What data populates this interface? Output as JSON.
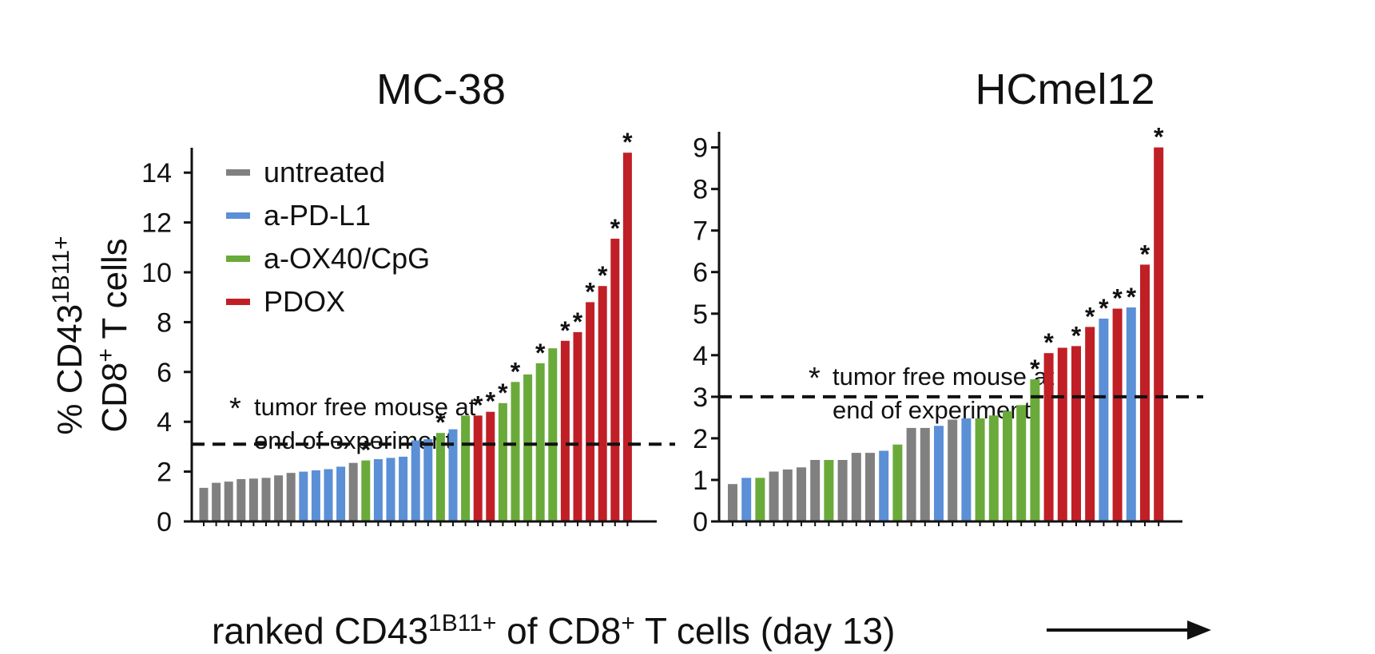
{
  "colors": {
    "untreated": "#808080",
    "a-PD-L1": "#5b8fd6",
    "a-OX40/CpG": "#6aaa3a",
    "PDOX": "#c01f26"
  },
  "legend": [
    {
      "key": "untreated",
      "label": "untreated"
    },
    {
      "key": "a-PD-L1",
      "label": "a-PD-L1"
    },
    {
      "key": "a-OX40/CpG",
      "label": "a-OX40/CpG"
    },
    {
      "key": "PDOX",
      "label": "PDOX"
    }
  ],
  "ylabel_line1": "% CD43",
  "ylabel_line1_sup": "1B11+",
  "ylabel_line2": "CD8",
  "ylabel_line2_sup": "+",
  "ylabel_line2_rest": " T cells",
  "xlabel_part1": "ranked CD43",
  "xlabel_sup1": "1B11+",
  "xlabel_part2": " of CD8",
  "xlabel_sup2": "+",
  "xlabel_part3": " T cells (day 13)",
  "tumor_free_star": "*",
  "chart_data": [
    {
      "type": "bar",
      "title": "MC-38",
      "ylim": [
        0,
        15
      ],
      "yticks": [
        0,
        2,
        4,
        6,
        8,
        10,
        12,
        14
      ],
      "threshold": 3.1,
      "annotation_line1": "tumor free mouse at",
      "annotation_line2": "end of experiment",
      "values": [
        1.35,
        1.55,
        1.6,
        1.7,
        1.72,
        1.75,
        1.85,
        1.95,
        2.0,
        2.05,
        2.1,
        2.2,
        2.35,
        2.45,
        2.5,
        2.55,
        2.6,
        3.25,
        3.3,
        3.55,
        3.7,
        4.25,
        4.25,
        4.4,
        4.75,
        5.6,
        5.9,
        6.35,
        6.95,
        7.25,
        7.6,
        8.8,
        9.45,
        11.35,
        14.8
      ],
      "groups": [
        "untreated",
        "untreated",
        "untreated",
        "untreated",
        "untreated",
        "untreated",
        "untreated",
        "untreated",
        "a-PD-L1",
        "a-PD-L1",
        "a-PD-L1",
        "a-PD-L1",
        "untreated",
        "a-OX40/CpG",
        "a-PD-L1",
        "a-PD-L1",
        "a-PD-L1",
        "a-PD-L1",
        "a-PD-L1",
        "a-OX40/CpG",
        "a-PD-L1",
        "a-OX40/CpG",
        "PDOX",
        "PDOX",
        "a-OX40/CpG",
        "a-OX40/CpG",
        "a-OX40/CpG",
        "a-OX40/CpG",
        "a-OX40/CpG",
        "PDOX",
        "PDOX",
        "PDOX",
        "PDOX",
        "PDOX",
        "PDOX"
      ],
      "tumor_free": [
        false,
        false,
        false,
        false,
        false,
        false,
        false,
        false,
        false,
        false,
        false,
        false,
        false,
        true,
        false,
        false,
        false,
        false,
        false,
        true,
        false,
        false,
        true,
        true,
        true,
        true,
        false,
        true,
        false,
        true,
        true,
        true,
        true,
        true,
        true
      ]
    },
    {
      "type": "bar",
      "title": "HCmel12",
      "ylim": [
        0,
        9.3
      ],
      "yticks": [
        0,
        1,
        2,
        3,
        4,
        5,
        6,
        7,
        8,
        9
      ],
      "threshold": 3.0,
      "annotation_line1": "tumor free mouse at",
      "annotation_line2": "end of experiment",
      "values": [
        0.9,
        1.05,
        1.05,
        1.2,
        1.25,
        1.3,
        1.48,
        1.48,
        1.48,
        1.65,
        1.65,
        1.7,
        1.85,
        2.25,
        2.25,
        2.3,
        2.45,
        2.48,
        2.48,
        2.55,
        2.65,
        2.8,
        3.42,
        4.05,
        4.18,
        4.22,
        4.68,
        4.88,
        5.12,
        5.15,
        6.18,
        9.0
      ],
      "groups": [
        "untreated",
        "a-PD-L1",
        "a-OX40/CpG",
        "untreated",
        "untreated",
        "untreated",
        "untreated",
        "a-OX40/CpG",
        "untreated",
        "untreated",
        "untreated",
        "a-PD-L1",
        "a-OX40/CpG",
        "untreated",
        "untreated",
        "a-PD-L1",
        "untreated",
        "a-PD-L1",
        "a-OX40/CpG",
        "a-OX40/CpG",
        "a-OX40/CpG",
        "a-OX40/CpG",
        "a-OX40/CpG",
        "PDOX",
        "PDOX",
        "PDOX",
        "PDOX",
        "a-PD-L1",
        "PDOX",
        "a-PD-L1",
        "PDOX",
        "PDOX"
      ],
      "tumor_free": [
        false,
        false,
        false,
        false,
        false,
        false,
        false,
        false,
        false,
        false,
        false,
        false,
        false,
        false,
        false,
        false,
        false,
        false,
        false,
        false,
        false,
        false,
        true,
        true,
        false,
        true,
        true,
        true,
        true,
        true,
        true,
        true
      ]
    }
  ]
}
